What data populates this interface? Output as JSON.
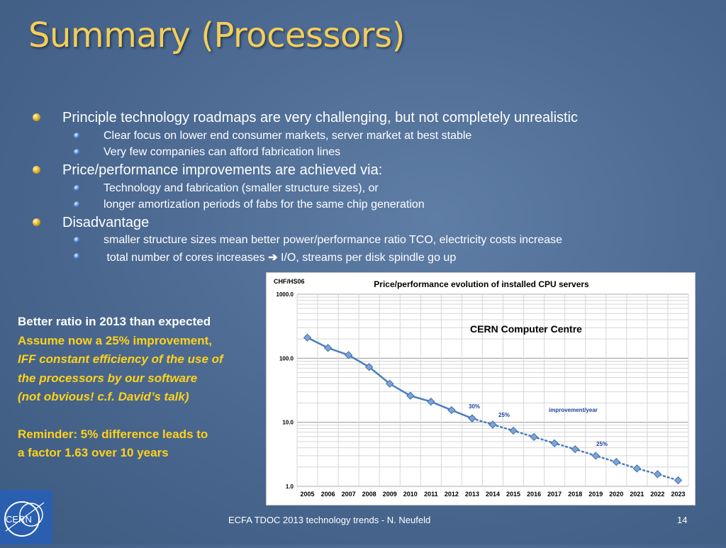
{
  "slide": {
    "title": "Summary (Processors)",
    "bullets": [
      {
        "text": "Principle technology roadmaps are very challenging, but not completely unrealistic",
        "sub": [
          "Clear focus on lower end consumer markets,  server market at best stable",
          "Very few companies can afford fabrication lines"
        ]
      },
      {
        "text": "Price/performance improvements are achieved via:",
        "sub": [
          "Technology and fabrication (smaller structure sizes), or",
          "longer amortization periods of fabs for the same chip generation"
        ]
      },
      {
        "text": "Disadvantage",
        "sub": [
          "smaller structure sizes mean better power/performance ratio  TCO, electricity costs increase",
          " total number of cores increases",
          "I/O, streams per disk spindle go up"
        ]
      }
    ],
    "arrow_glyph": "➔",
    "side_notes": {
      "line1": "Better ratio in 2013 than expected",
      "line2": "Assume now a 25% improvement,",
      "line3": "IFF constant efficiency of the use of",
      "line4": "the processors by our software",
      "line5": "(not obvious! c.f. David’s talk)",
      "line6": "Reminder: 5% difference leads to",
      "line7": "a factor 1.63 over 10 years"
    },
    "footer": "ECFA TDOC 2013 technology trends - N. Neufeld",
    "page_number": "14",
    "logo": {
      "text": "CERN",
      "background": "#2a5fb0"
    }
  },
  "chart_data": {
    "type": "line",
    "title": "Price/performance evolution of installed CPU servers",
    "ylabel": "CHF/HS06",
    "subtitle": "CERN Computer Centre",
    "yscale": "log",
    "ylim": [
      1,
      1000
    ],
    "yticks": [
      "1000.0",
      "100.0",
      "10.0",
      "1.0"
    ],
    "x": [
      "2005",
      "2006",
      "2007",
      "2008",
      "2009",
      "2010",
      "2011",
      "2012",
      "2013",
      "2014",
      "2015",
      "2016",
      "2017",
      "2018",
      "2019",
      "2020",
      "2021",
      "2022",
      "2023"
    ],
    "series": [
      {
        "style": "solid",
        "color": "#4a7ebb",
        "x": [
          "2005",
          "2006",
          "2007",
          "2008",
          "2009",
          "2010",
          "2011",
          "2012",
          "2013"
        ],
        "values": [
          210,
          145,
          112,
          73,
          40,
          26,
          21,
          15.5,
          11.5
        ]
      },
      {
        "style": "dotted",
        "color": "#4a7ebb",
        "x": [
          "2013",
          "2014",
          "2015",
          "2016",
          "2017",
          "2018",
          "2019",
          "2020",
          "2021",
          "2022",
          "2023"
        ],
        "values": [
          11.5,
          9.2,
          7.4,
          5.9,
          4.7,
          3.8,
          3.0,
          2.4,
          1.9,
          1.55,
          1.24
        ]
      }
    ],
    "annotations": {
      "a30": "30%",
      "a25a": "25%",
      "improvement": "improvement/year",
      "a25b": "25%"
    },
    "grid": true,
    "legend": "none"
  }
}
